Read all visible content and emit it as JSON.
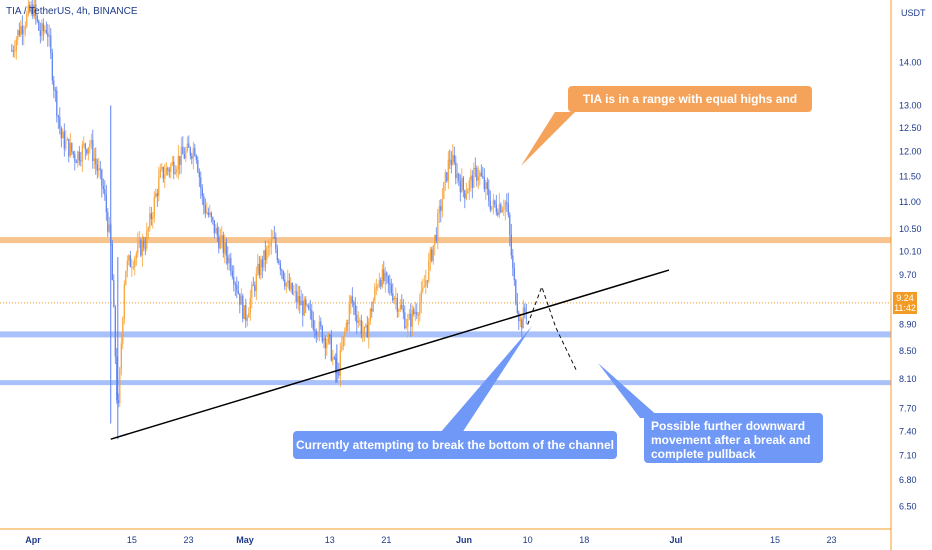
{
  "header": {
    "symbol_title": "TIA / TetherUS, 4h, BINANCE",
    "currency": "USDT"
  },
  "price_tag": {
    "price": "9.24",
    "countdown": "11:42"
  },
  "annotations": {
    "range_note": "TIA is in a range with equal highs and lows",
    "channel_note": "Currently attempting to break the bottom of the channel",
    "downside_note": "Possible further downward movement after a break and complete pullback"
  },
  "colors": {
    "up_candle": "#f7a134",
    "down_candle": "#5b7ff0",
    "resistance_band": "#f8c48e",
    "support_band": "#a9c1fa",
    "trendline": "#000000",
    "last_price_line": "#f39c25",
    "axis_text": "#1e3a8a"
  },
  "chart_data": {
    "type": "candlestick",
    "symbol": "TIA / TetherUS",
    "interval": "4h",
    "exchange": "BINANCE",
    "y_scale": "log",
    "ylim": [
      6.25,
      15.6
    ],
    "y_ticks": [
      "14.00",
      "13.00",
      "12.50",
      "12.00",
      "11.50",
      "11.00",
      "10.50",
      "10.10",
      "9.70",
      "8.90",
      "8.50",
      "8.10",
      "7.70",
      "7.40",
      "7.10",
      "6.80",
      "6.50"
    ],
    "x_ticks": [
      "Apr",
      "15",
      "23",
      "May",
      "13",
      "21",
      "Jun",
      "10",
      "18",
      "Jul",
      "15",
      "23"
    ],
    "last_price": 9.24,
    "horizontal_levels": [
      {
        "kind": "resistance",
        "price": 10.3
      },
      {
        "kind": "support",
        "price": 8.75
      },
      {
        "kind": "support",
        "price": 8.05
      }
    ],
    "trendline": {
      "from": {
        "x": "Apr 12",
        "price": 7.3
      },
      "to": {
        "x": "Jun 30",
        "price": 9.78
      }
    },
    "projection_path": [
      {
        "x": "Jun 10",
        "price": 8.9
      },
      {
        "x": "Jun 12",
        "price": 9.5
      },
      {
        "x": "Jun 14",
        "price": 8.85
      },
      {
        "x": "Jun 17",
        "price": 8.2
      }
    ],
    "price_path": [
      {
        "x": "Mar 29",
        "price": 14.3
      },
      {
        "x": "Mar 30",
        "price": 14.8
      },
      {
        "x": "Apr 1",
        "price": 15.4
      },
      {
        "x": "Apr 2",
        "price": 14.7
      },
      {
        "x": "Apr 3",
        "price": 14.9
      },
      {
        "x": "Apr 4",
        "price": 13.4
      },
      {
        "x": "Apr 5",
        "price": 12.3
      },
      {
        "x": "Apr 7",
        "price": 11.9
      },
      {
        "x": "Apr 9",
        "price": 12.2
      },
      {
        "x": "Apr 11",
        "price": 11.2
      },
      {
        "x": "Apr 12",
        "price": 10.2
      },
      {
        "x": "Apr 13",
        "price": 7.5
      },
      {
        "x": "Apr 14",
        "price": 9.8
      },
      {
        "x": "Apr 17",
        "price": 10.3
      },
      {
        "x": "Apr 19",
        "price": 11.5
      },
      {
        "x": "Apr 22",
        "price": 11.9
      },
      {
        "x": "Apr 24",
        "price": 12.1
      },
      {
        "x": "Apr 25",
        "price": 11.0
      },
      {
        "x": "Apr 27",
        "price": 10.4
      },
      {
        "x": "Apr 29",
        "price": 9.9
      },
      {
        "x": "May 1",
        "price": 9.0
      },
      {
        "x": "May 3",
        "price": 9.8
      },
      {
        "x": "May 5",
        "price": 10.3
      },
      {
        "x": "May 7",
        "price": 9.5
      },
      {
        "x": "May 9",
        "price": 9.2
      },
      {
        "x": "May 11",
        "price": 8.9
      },
      {
        "x": "May 13",
        "price": 8.6
      },
      {
        "x": "May 14",
        "price": 8.1
      },
      {
        "x": "May 16",
        "price": 9.3
      },
      {
        "x": "May 18",
        "price": 8.7
      },
      {
        "x": "May 20",
        "price": 9.7
      },
      {
        "x": "May 22",
        "price": 9.4
      },
      {
        "x": "May 24",
        "price": 8.9
      },
      {
        "x": "May 26",
        "price": 9.3
      },
      {
        "x": "May 28",
        "price": 10.4
      },
      {
        "x": "May 30",
        "price": 11.9
      },
      {
        "x": "Jun 1",
        "price": 11.2
      },
      {
        "x": "Jun 3",
        "price": 11.6
      },
      {
        "x": "Jun 5",
        "price": 10.9
      },
      {
        "x": "Jun 7",
        "price": 11.0
      },
      {
        "x": "Jun 8",
        "price": 9.6
      },
      {
        "x": "Jun 9",
        "price": 8.9
      },
      {
        "x": "Jun 10",
        "price": 9.24
      }
    ]
  }
}
